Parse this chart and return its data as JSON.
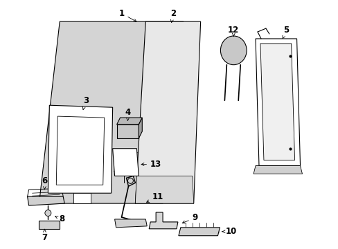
{
  "background_color": "#ffffff",
  "line_color": "#000000",
  "panel_fill": "#d4d4d4",
  "seat_fill": "#e8e8e8",
  "white": "#ffffff",
  "part_fill": "#c8c8c8",
  "font_size": 8.5,
  "fig_w": 4.89,
  "fig_h": 3.6,
  "dpi": 100
}
